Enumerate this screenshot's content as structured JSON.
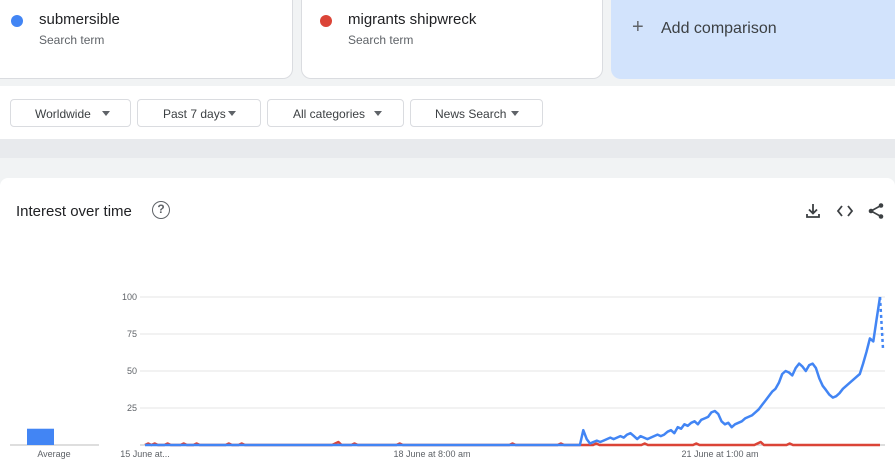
{
  "terms": [
    {
      "name": "submersible",
      "sub": "Search term",
      "color": "#4285f4"
    },
    {
      "name": "migrants shipwreck",
      "sub": "Search term",
      "color": "#db4437"
    }
  ],
  "add_comparison": {
    "label": "Add comparison",
    "icon": "plus-icon"
  },
  "filters": [
    {
      "label": "Worldwide"
    },
    {
      "label": "Past 7 days"
    },
    {
      "label": "All categories"
    },
    {
      "label": "News Search"
    }
  ],
  "chart_section": {
    "title": "Interest over time",
    "icons": [
      "help-icon",
      "download-icon",
      "embed-icon",
      "share-icon"
    ]
  },
  "chart_data": {
    "type": "line",
    "ylim": [
      0,
      100
    ],
    "yticks": [
      "100",
      "75",
      "50",
      "25"
    ],
    "ytick_values": [
      100,
      75,
      50,
      25
    ],
    "xtick_labels": [
      "15 June at...",
      "18 June at 8:00 am",
      "21 June at 1:00 am"
    ],
    "average_label": "Average",
    "average_bar": {
      "series": "submersible",
      "value": 11
    },
    "series": [
      {
        "name": "submersible",
        "color": "#4285f4",
        "values": [
          0,
          0,
          0,
          0,
          0,
          0,
          0,
          0,
          0,
          0,
          0,
          0,
          0,
          0,
          0,
          0,
          0,
          0,
          0,
          0,
          0,
          0,
          0,
          0,
          0,
          0,
          0,
          0,
          0,
          0,
          0,
          0,
          0,
          0,
          0,
          0,
          0,
          0,
          0,
          0,
          0,
          0,
          0,
          0,
          0,
          0,
          0,
          0,
          0,
          0,
          0,
          0,
          0,
          0,
          0,
          0,
          0,
          0,
          0,
          0,
          0,
          0,
          0,
          0,
          0,
          0,
          0,
          0,
          0,
          0,
          0,
          0,
          0,
          0,
          0,
          0,
          0,
          0,
          0,
          0,
          0,
          0,
          0,
          0,
          0,
          0,
          0,
          0,
          0,
          0,
          0,
          0,
          0,
          0,
          0,
          0,
          0,
          0,
          0,
          0,
          0,
          0,
          0,
          0,
          0,
          0,
          0,
          0,
          0,
          0,
          0,
          0,
          0,
          0,
          0,
          0,
          0,
          0,
          0,
          0,
          0,
          0,
          0,
          0,
          0,
          0,
          0,
          0,
          0,
          0,
          10,
          4,
          1,
          2,
          3,
          2,
          3,
          4,
          5,
          4,
          5,
          6,
          5,
          7,
          8,
          6,
          4,
          6,
          5,
          4,
          5,
          6,
          7,
          6,
          7,
          9,
          10,
          8,
          12,
          11,
          14,
          13,
          15,
          16,
          14,
          17,
          18,
          19,
          22,
          23,
          21,
          16,
          14,
          15,
          12,
          14,
          15,
          16,
          18,
          19,
          20,
          22,
          24,
          27,
          30,
          33,
          36,
          38,
          42,
          48,
          50,
          49,
          47,
          52,
          55,
          53,
          50,
          54,
          55,
          52,
          45,
          40,
          37,
          34,
          32,
          33,
          35,
          38,
          40,
          42,
          44,
          46,
          48,
          55,
          63,
          72,
          70,
          85,
          100
        ],
        "dotted_tail": [
          100,
          65
        ]
      },
      {
        "name": "migrants shipwreck",
        "color": "#db4437",
        "values": [
          0,
          1,
          0,
          1,
          0,
          0,
          0,
          1,
          0,
          0,
          0,
          0,
          1,
          0,
          0,
          0,
          1,
          0,
          0,
          0,
          0,
          0,
          0,
          0,
          0,
          0,
          1,
          0,
          0,
          0,
          1,
          0,
          0,
          0,
          0,
          0,
          0,
          0,
          0,
          0,
          0,
          0,
          0,
          0,
          0,
          0,
          0,
          0,
          0,
          0,
          0,
          0,
          0,
          0,
          0,
          0,
          0,
          0,
          0,
          1,
          2,
          0,
          0,
          0,
          0,
          1,
          0,
          0,
          0,
          0,
          0,
          0,
          0,
          0,
          0,
          0,
          0,
          0,
          0,
          1,
          0,
          0,
          0,
          0,
          0,
          0,
          0,
          0,
          0,
          0,
          0,
          0,
          0,
          0,
          0,
          0,
          0,
          0,
          0,
          0,
          0,
          0,
          0,
          0,
          0,
          0,
          0,
          0,
          0,
          0,
          0,
          0,
          0,
          0,
          1,
          0,
          0,
          0,
          0,
          0,
          0,
          0,
          0,
          0,
          0,
          0,
          0,
          0,
          0,
          1,
          0,
          0,
          0,
          0,
          0,
          0,
          0,
          0,
          0,
          0,
          1,
          0,
          0,
          0,
          0,
          0,
          0,
          0,
          0,
          0,
          0,
          0,
          0,
          0,
          0,
          1,
          0,
          0,
          0,
          0,
          0,
          0,
          0,
          0,
          0,
          0,
          0,
          0,
          0,
          0,
          0,
          1,
          0,
          0,
          0,
          0,
          0,
          0,
          0,
          0,
          0,
          0,
          0,
          0,
          0,
          0,
          0,
          0,
          0,
          0,
          1,
          2,
          0,
          0,
          0,
          0,
          0,
          0,
          0,
          0,
          1,
          0,
          0,
          0,
          0,
          0,
          0,
          0,
          0,
          0,
          0,
          0,
          0,
          0,
          0,
          0,
          0,
          0,
          0,
          0,
          0,
          0,
          0,
          0,
          0,
          0,
          0,
          0,
          0
        ]
      }
    ]
  }
}
